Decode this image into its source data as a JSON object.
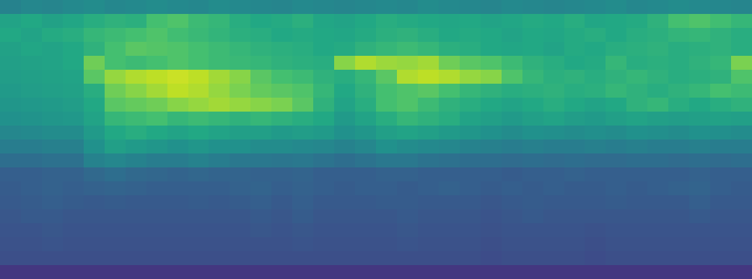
{
  "chart_data": {
    "type": "heatmap",
    "zlim": [
      0,
      100
    ],
    "tick_labels": false,
    "cells": [
      [
        44,
        46,
        45,
        47,
        48,
        46,
        47,
        48,
        47,
        46,
        48,
        47,
        46,
        45,
        47,
        46,
        45,
        46,
        47,
        46,
        48,
        47,
        46,
        45,
        47,
        46,
        45,
        46,
        47,
        48,
        46,
        47,
        48,
        47,
        46,
        45
      ],
      [
        58,
        60,
        57,
        59,
        62,
        64,
        63,
        70,
        72,
        68,
        66,
        62,
        60,
        61,
        63,
        59,
        58,
        60,
        62,
        61,
        60,
        59,
        60,
        58,
        59,
        61,
        60,
        62,
        59,
        60,
        61,
        64,
        70,
        72,
        69,
        66
      ],
      [
        60,
        58,
        61,
        62,
        66,
        68,
        70,
        72,
        69,
        67,
        65,
        63,
        62,
        60,
        61,
        60,
        59,
        61,
        63,
        64,
        62,
        60,
        61,
        60,
        58,
        60,
        59,
        61,
        62,
        60,
        62,
        63,
        65,
        66,
        64,
        62
      ],
      [
        57,
        59,
        58,
        60,
        64,
        70,
        74,
        73,
        72,
        70,
        68,
        66,
        64,
        63,
        62,
        60,
        61,
        64,
        66,
        68,
        66,
        63,
        62,
        60,
        59,
        60,
        58,
        61,
        60,
        62,
        63,
        64,
        62,
        63,
        64,
        62
      ],
      [
        56,
        57,
        58,
        60,
        78,
        70,
        68,
        70,
        72,
        70,
        68,
        67,
        66,
        64,
        63,
        62,
        82,
        88,
        85,
        84,
        86,
        78,
        74,
        72,
        68,
        64,
        62,
        60,
        61,
        66,
        62,
        63,
        62,
        64,
        66,
        80
      ],
      [
        55,
        56,
        57,
        58,
        74,
        84,
        88,
        90,
        92,
        90,
        86,
        82,
        74,
        70,
        68,
        64,
        62,
        66,
        74,
        88,
        90,
        88,
        84,
        82,
        72,
        66,
        63,
        64,
        62,
        64,
        66,
        64,
        62,
        63,
        64,
        72
      ],
      [
        54,
        55,
        56,
        57,
        62,
        78,
        82,
        86,
        90,
        88,
        84,
        80,
        76,
        74,
        72,
        66,
        60,
        64,
        70,
        72,
        74,
        70,
        66,
        64,
        62,
        63,
        64,
        62,
        63,
        66,
        64,
        62,
        64,
        66,
        70,
        68
      ],
      [
        52,
        53,
        54,
        55,
        60,
        74,
        76,
        78,
        82,
        84,
        86,
        84,
        82,
        80,
        74,
        64,
        58,
        62,
        70,
        72,
        68,
        64,
        62,
        60,
        58,
        60,
        62,
        60,
        58,
        60,
        64,
        66,
        62,
        60,
        62,
        64
      ],
      [
        50,
        51,
        52,
        53,
        58,
        66,
        68,
        70,
        66,
        68,
        66,
        64,
        66,
        64,
        62,
        60,
        54,
        58,
        62,
        66,
        64,
        62,
        58,
        56,
        54,
        56,
        58,
        55,
        54,
        56,
        58,
        56,
        55,
        56,
        57,
        56
      ],
      [
        46,
        47,
        48,
        48,
        54,
        60,
        62,
        60,
        58,
        60,
        58,
        56,
        56,
        54,
        55,
        54,
        50,
        52,
        56,
        58,
        56,
        54,
        52,
        50,
        48,
        50,
        49,
        48,
        49,
        48,
        50,
        49,
        48,
        50,
        49,
        48
      ],
      [
        42,
        42,
        43,
        43,
        50,
        56,
        54,
        52,
        50,
        52,
        50,
        50,
        48,
        48,
        47,
        46,
        44,
        46,
        50,
        48,
        47,
        46,
        44,
        43,
        42,
        43,
        42,
        42,
        43,
        42,
        43,
        42,
        42,
        43,
        42,
        42
      ],
      [
        36,
        36,
        37,
        37,
        44,
        46,
        44,
        42,
        42,
        44,
        42,
        40,
        40,
        39,
        40,
        38,
        36,
        38,
        40,
        40,
        38,
        37,
        36,
        36,
        35,
        36,
        35,
        36,
        35,
        35,
        36,
        36,
        35,
        36,
        35,
        36
      ],
      [
        30,
        30,
        31,
        31,
        34,
        36,
        34,
        33,
        32,
        33,
        32,
        32,
        31,
        31,
        32,
        30,
        30,
        30,
        31,
        31,
        30,
        30,
        30,
        30,
        29,
        30,
        30,
        31,
        30,
        30,
        30,
        30,
        30,
        31,
        30,
        30
      ],
      [
        29,
        30,
        31,
        30,
        31,
        32,
        31,
        30,
        30,
        30,
        30,
        31,
        32,
        30,
        31,
        30,
        29,
        30,
        30,
        29,
        30,
        31,
        30,
        29,
        30,
        29,
        30,
        29,
        29,
        30,
        29,
        30,
        31,
        32,
        30,
        29
      ],
      [
        28,
        29,
        30,
        29,
        28,
        29,
        28,
        28,
        28,
        29,
        28,
        29,
        30,
        28,
        30,
        28,
        28,
        28,
        29,
        29,
        28,
        28,
        28,
        27,
        28,
        29,
        28,
        28,
        28,
        29,
        28,
        28,
        28,
        30,
        28,
        28
      ],
      [
        27,
        28,
        28,
        27,
        27,
        27,
        27,
        27,
        27,
        27,
        27,
        27,
        28,
        27,
        29,
        27,
        27,
        27,
        27,
        28,
        27,
        27,
        27,
        26,
        27,
        28,
        27,
        27,
        27,
        27,
        27,
        27,
        27,
        28,
        27,
        27
      ],
      [
        26,
        26,
        27,
        26,
        26,
        26,
        26,
        26,
        26,
        26,
        26,
        26,
        27,
        26,
        27,
        26,
        26,
        26,
        26,
        27,
        26,
        26,
        26,
        25,
        26,
        26,
        26,
        26,
        25,
        26,
        26,
        26,
        26,
        26,
        26,
        26
      ],
      [
        25,
        25,
        26,
        25,
        25,
        25,
        25,
        25,
        25,
        25,
        25,
        25,
        25,
        25,
        26,
        25,
        25,
        25,
        25,
        26,
        25,
        25,
        25,
        24,
        25,
        25,
        25,
        25,
        24,
        25,
        25,
        25,
        25,
        25,
        25,
        25
      ],
      [
        24,
        24,
        24,
        24,
        24,
        24,
        24,
        24,
        24,
        24,
        24,
        24,
        24,
        24,
        24,
        24,
        24,
        24,
        24,
        24,
        24,
        24,
        24,
        23,
        24,
        24,
        24,
        24,
        23,
        24,
        24,
        24,
        24,
        24,
        24,
        24
      ],
      [
        16,
        16,
        16,
        16,
        16,
        16,
        16,
        16,
        16,
        16,
        16,
        16,
        16,
        16,
        16,
        16,
        16,
        16,
        16,
        16,
        16,
        16,
        16,
        16,
        16,
        16,
        16,
        16,
        16,
        16,
        16,
        16,
        16,
        16,
        16,
        16
      ]
    ]
  }
}
